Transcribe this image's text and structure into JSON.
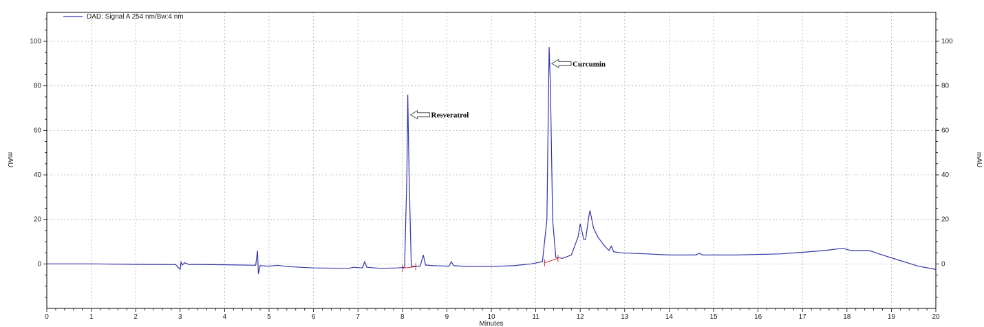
{
  "chart_data": {
    "type": "line",
    "title": "",
    "xlabel": "Minutes",
    "ylabel": "mAU",
    "ylabel_right": "mAU",
    "xlim": [
      0,
      20
    ],
    "ylim": [
      -20,
      113
    ],
    "x_ticks": [
      0,
      1,
      2,
      3,
      4,
      5,
      6,
      7,
      8,
      9,
      10,
      11,
      12,
      13,
      14,
      15,
      16,
      17,
      18,
      19,
      20
    ],
    "y_ticks": [
      0,
      20,
      40,
      60,
      80,
      100
    ],
    "grid": true,
    "legend": {
      "placement": "top-left",
      "entries": [
        "DAD: Signal A 254 nm/Bw:4 nm"
      ]
    },
    "colors": {
      "signal": "#3333aa",
      "baseline_marks": "#cc3333",
      "grid": "#b0b0b0"
    },
    "series": [
      {
        "name": "DAD: Signal A 254 nm/Bw:4 nm",
        "points": [
          [
            0,
            0
          ],
          [
            1,
            0
          ],
          [
            2,
            -0.2
          ],
          [
            2.9,
            -0.3
          ],
          [
            3.0,
            -2.5
          ],
          [
            3.02,
            1
          ],
          [
            3.05,
            -0.5
          ],
          [
            3.1,
            0.5
          ],
          [
            3.2,
            -0.3
          ],
          [
            3.3,
            -0.2
          ],
          [
            4.0,
            -0.4
          ],
          [
            4.7,
            -0.6
          ],
          [
            4.74,
            6
          ],
          [
            4.76,
            -4.5
          ],
          [
            4.8,
            -0.8
          ],
          [
            5.0,
            -1
          ],
          [
            5.2,
            -0.6
          ],
          [
            5.4,
            -1.2
          ],
          [
            6.0,
            -1.8
          ],
          [
            6.8,
            -2
          ],
          [
            6.9,
            -1.5
          ],
          [
            7.1,
            -1.8
          ],
          [
            7.15,
            1
          ],
          [
            7.2,
            -1.5
          ],
          [
            7.5,
            -2
          ],
          [
            7.9,
            -1.8
          ],
          [
            8.05,
            -1.5
          ],
          [
            8.1,
            40
          ],
          [
            8.12,
            76
          ],
          [
            8.15,
            40
          ],
          [
            8.2,
            -1
          ],
          [
            8.4,
            -1
          ],
          [
            8.47,
            4
          ],
          [
            8.52,
            -0.5
          ],
          [
            8.7,
            -0.8
          ],
          [
            9.05,
            -1
          ],
          [
            9.1,
            1
          ],
          [
            9.15,
            -0.8
          ],
          [
            9.5,
            -1.2
          ],
          [
            10.0,
            -1.2
          ],
          [
            10.5,
            -0.8
          ],
          [
            10.9,
            0
          ],
          [
            11.15,
            1
          ],
          [
            11.25,
            20
          ],
          [
            11.3,
            97.5
          ],
          [
            11.33,
            80
          ],
          [
            11.38,
            20
          ],
          [
            11.45,
            3
          ],
          [
            11.6,
            2.5
          ],
          [
            11.8,
            4
          ],
          [
            11.95,
            12
          ],
          [
            12.0,
            18
          ],
          [
            12.08,
            11
          ],
          [
            12.12,
            11
          ],
          [
            12.2,
            22
          ],
          [
            12.22,
            24
          ],
          [
            12.3,
            16
          ],
          [
            12.4,
            12
          ],
          [
            12.55,
            8
          ],
          [
            12.65,
            6
          ],
          [
            12.7,
            8
          ],
          [
            12.75,
            5.5
          ],
          [
            12.9,
            5
          ],
          [
            13.5,
            4.5
          ],
          [
            14.0,
            4
          ],
          [
            14.6,
            4
          ],
          [
            14.68,
            4.8
          ],
          [
            14.75,
            4
          ],
          [
            15.5,
            4
          ],
          [
            16.5,
            4.5
          ],
          [
            17.0,
            5.2
          ],
          [
            17.5,
            6
          ],
          [
            17.9,
            7
          ],
          [
            18.1,
            6
          ],
          [
            18.5,
            6
          ],
          [
            18.8,
            4
          ],
          [
            19.2,
            1.5
          ],
          [
            19.6,
            -1
          ],
          [
            20.0,
            -2.5
          ]
        ]
      }
    ],
    "baseline_segments": [
      [
        [
          8.0,
          -2
        ],
        [
          8.3,
          -1.2
        ]
      ],
      [
        [
          11.2,
          0.5
        ],
        [
          11.5,
          2.5
        ]
      ]
    ],
    "annotations": [
      {
        "text": "Resveratrol",
        "x": 8.12,
        "y": 67
      },
      {
        "text": "Curcumin",
        "x": 11.3,
        "y": 90
      }
    ]
  }
}
